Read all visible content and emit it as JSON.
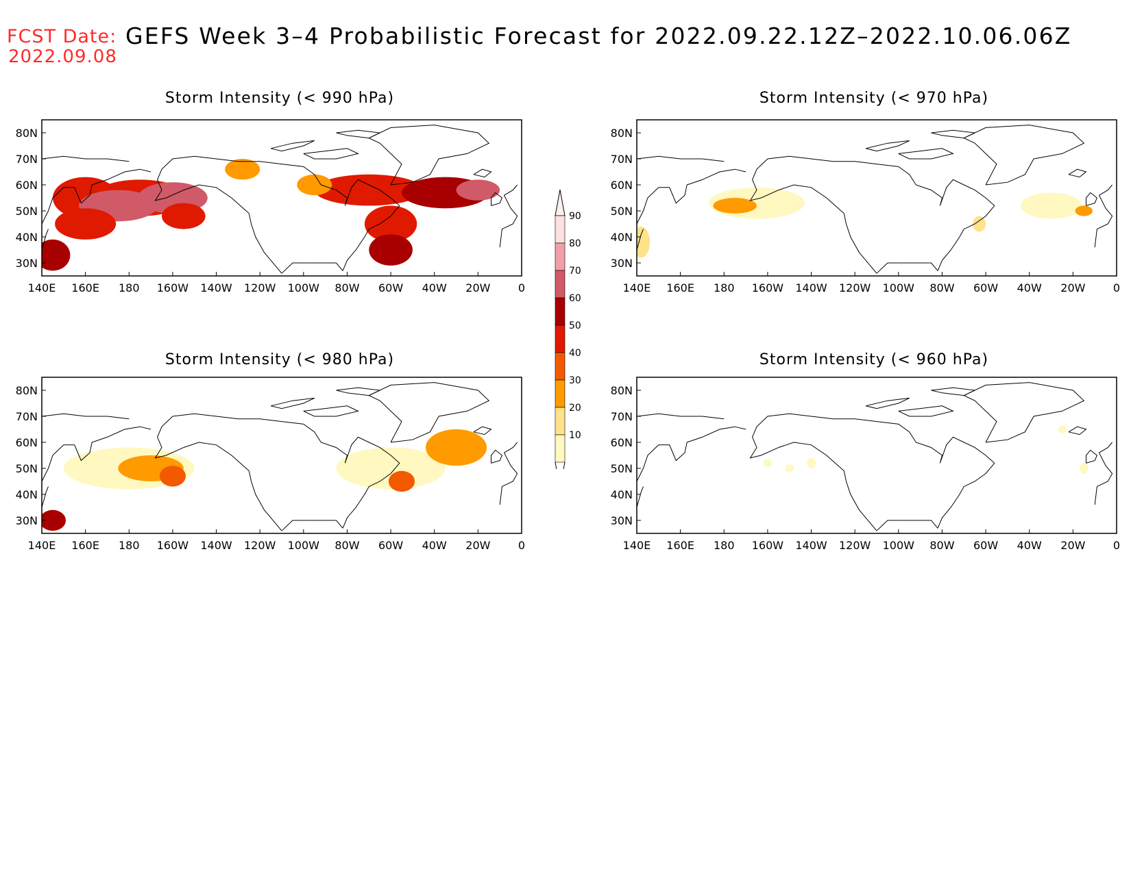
{
  "header": {
    "fcst_label": "FCST Date:",
    "fcst_date": "2022.09.08",
    "title": "GEFS Week 3–4 Probabilistic Forecast for 2022.09.22.12Z–2022.10.06.06Z"
  },
  "panels": [
    {
      "id": "p990",
      "title": "Storm Intensity (< 990 hPa)",
      "blobs": [
        {
          "lon": 160,
          "lat": 55,
          "rx": 15,
          "ry": 8,
          "level": 5
        },
        {
          "lon": 185,
          "lat": 55,
          "rx": 22,
          "ry": 7,
          "level": 5
        },
        {
          "lon": 175,
          "lat": 52,
          "rx": 18,
          "ry": 6,
          "level": 7
        },
        {
          "lon": 200,
          "lat": 55,
          "rx": 16,
          "ry": 6,
          "level": 7
        },
        {
          "lon": 160,
          "lat": 45,
          "rx": 14,
          "ry": 6,
          "level": 5
        },
        {
          "lon": 145,
          "lat": 33,
          "rx": 8,
          "ry": 6,
          "level": 6
        },
        {
          "lon": 205,
          "lat": 48,
          "rx": 10,
          "ry": 5,
          "level": 5
        },
        {
          "lon": 232,
          "lat": 66,
          "rx": 8,
          "ry": 4,
          "level": 3
        },
        {
          "lon": 290,
          "lat": 58,
          "rx": 25,
          "ry": 6,
          "level": 5
        },
        {
          "lon": 325,
          "lat": 57,
          "rx": 20,
          "ry": 6,
          "level": 6
        },
        {
          "lon": 300,
          "lat": 45,
          "rx": 12,
          "ry": 7,
          "level": 5
        },
        {
          "lon": 300,
          "lat": 35,
          "rx": 10,
          "ry": 6,
          "level": 6
        },
        {
          "lon": 340,
          "lat": 58,
          "rx": 10,
          "ry": 4,
          "level": 7
        },
        {
          "lon": 265,
          "lat": 60,
          "rx": 8,
          "ry": 4,
          "level": 3
        }
      ]
    },
    {
      "id": "p970",
      "title": "Storm Intensity (< 970 hPa)",
      "blobs": [
        {
          "lon": 195,
          "lat": 53,
          "rx": 22,
          "ry": 6,
          "level": 1
        },
        {
          "lon": 185,
          "lat": 52,
          "rx": 10,
          "ry": 3,
          "level": 3
        },
        {
          "lon": 142,
          "lat": 38,
          "rx": 4,
          "ry": 6,
          "level": 2
        },
        {
          "lon": 297,
          "lat": 45,
          "rx": 3,
          "ry": 3,
          "level": 2
        },
        {
          "lon": 330,
          "lat": 52,
          "rx": 14,
          "ry": 5,
          "level": 1
        },
        {
          "lon": 345,
          "lat": 50,
          "rx": 4,
          "ry": 2,
          "level": 3
        }
      ]
    },
    {
      "id": "p980",
      "title": "Storm Intensity (< 980 hPa)",
      "blobs": [
        {
          "lon": 180,
          "lat": 50,
          "rx": 30,
          "ry": 8,
          "level": 1
        },
        {
          "lon": 190,
          "lat": 50,
          "rx": 15,
          "ry": 5,
          "level": 3
        },
        {
          "lon": 145,
          "lat": 30,
          "rx": 6,
          "ry": 4,
          "level": 6
        },
        {
          "lon": 200,
          "lat": 47,
          "rx": 6,
          "ry": 4,
          "level": 4
        },
        {
          "lon": 300,
          "lat": 50,
          "rx": 25,
          "ry": 8,
          "level": 1
        },
        {
          "lon": 330,
          "lat": 58,
          "rx": 14,
          "ry": 7,
          "level": 3
        },
        {
          "lon": 305,
          "lat": 45,
          "rx": 6,
          "ry": 4,
          "level": 4
        }
      ]
    },
    {
      "id": "p960",
      "title": "Storm Intensity (< 960 hPa)",
      "blobs": [
        {
          "lon": 220,
          "lat": 52,
          "rx": 2,
          "ry": 2,
          "level": 1
        },
        {
          "lon": 210,
          "lat": 50,
          "rx": 2,
          "ry": 1.5,
          "level": 1
        },
        {
          "lon": 200,
          "lat": 52,
          "rx": 2,
          "ry": 1.5,
          "level": 1
        },
        {
          "lon": 345,
          "lat": 50,
          "rx": 2,
          "ry": 2,
          "level": 1
        },
        {
          "lon": 335,
          "lat": 65,
          "rx": 2,
          "ry": 1.5,
          "level": 1
        }
      ]
    }
  ],
  "axes": {
    "lon_labels": [
      "140E",
      "160E",
      "180",
      "160W",
      "140W",
      "120W",
      "100W",
      "80W",
      "60W",
      "40W",
      "20W",
      "0"
    ],
    "lat_labels": [
      "30N",
      "40N",
      "50N",
      "60N",
      "70N",
      "80N"
    ]
  },
  "colorbar": {
    "labels": [
      "90",
      "80",
      "70",
      "60",
      "50",
      "40",
      "30",
      "20",
      "10"
    ],
    "colors": [
      "#fde0e0",
      "#f2a0a8",
      "#d05a68",
      "#a80000",
      "#e01a00",
      "#f35a00",
      "#ff9a00",
      "#ffe28a",
      "#fff8c0"
    ]
  }
}
